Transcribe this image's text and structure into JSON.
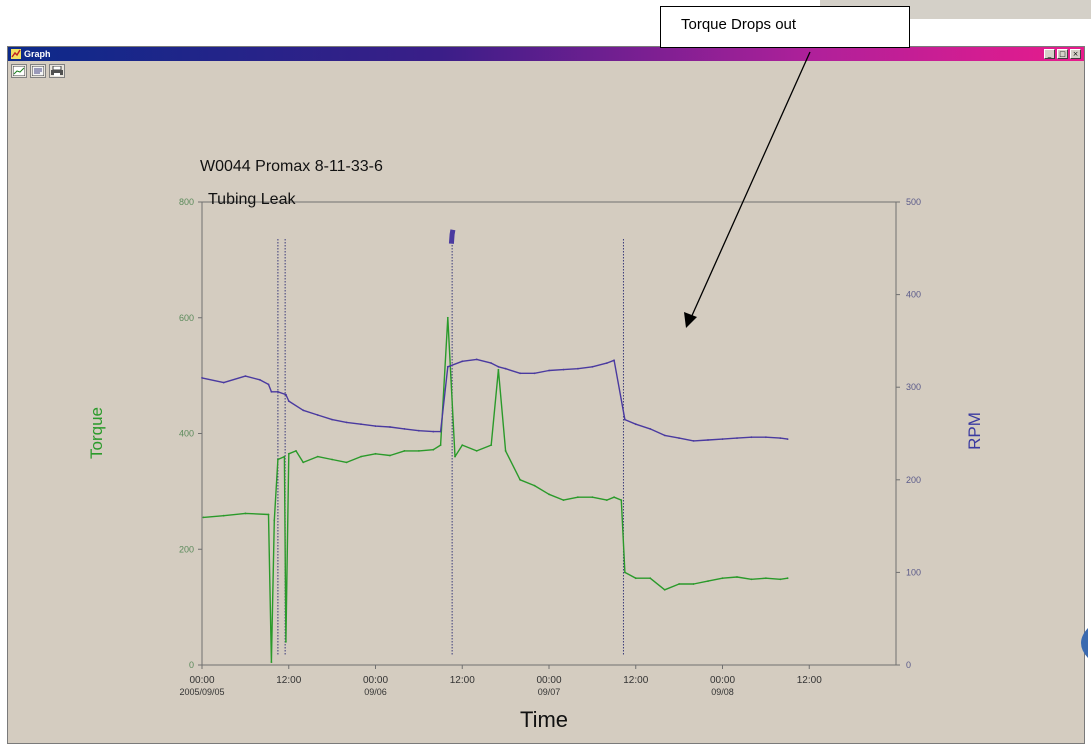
{
  "window": {
    "title": "Graph",
    "controls": [
      "_",
      "□",
      "×"
    ]
  },
  "toolbar": {
    "icons": [
      "chart-icon",
      "save-icon",
      "print-icon"
    ]
  },
  "callout": {
    "text": "Torque Drops out"
  },
  "colors": {
    "torque": "#2a9a2a",
    "rpm": "#4a3aa0",
    "background": "#d4ccc0"
  },
  "chart_data": {
    "type": "line",
    "title": "W0044 Promax 8-11-33-6",
    "subtitle": "Tubing Leak",
    "xlabel": "Time",
    "ylabel_left": "Torque",
    "ylabel_right": "RPM",
    "ylim_left": [
      0,
      800
    ],
    "ylim_right": [
      0,
      500
    ],
    "xlim_hours": [
      0,
      96
    ],
    "x_ticks": [
      {
        "h": 0,
        "time": "00:00",
        "date": "2005/09/05"
      },
      {
        "h": 12,
        "time": "12:00",
        "date": ""
      },
      {
        "h": 24,
        "time": "00:00",
        "date": "09/06"
      },
      {
        "h": 36,
        "time": "12:00",
        "date": ""
      },
      {
        "h": 48,
        "time": "00:00",
        "date": "09/07"
      },
      {
        "h": 60,
        "time": "12:00",
        "date": ""
      },
      {
        "h": 72,
        "time": "00:00",
        "date": "09/08"
      },
      {
        "h": 84,
        "time": "12:00",
        "date": ""
      }
    ],
    "y_ticks_left": [
      "0",
      "200",
      "400",
      "600",
      "800"
    ],
    "y_ticks_right": [
      "0",
      "100",
      "200",
      "300",
      "400",
      "500"
    ],
    "series": [
      {
        "name": "Torque",
        "axis": "left",
        "points": [
          [
            0.2,
            255
          ],
          [
            3,
            258
          ],
          [
            6,
            262
          ],
          [
            9.2,
            260
          ],
          [
            9.6,
            5
          ],
          [
            10,
            250
          ],
          [
            10.5,
            355
          ],
          [
            11.4,
            360
          ],
          [
            11.6,
            40
          ],
          [
            12,
            365
          ],
          [
            13,
            370
          ],
          [
            14,
            350
          ],
          [
            16,
            360
          ],
          [
            18,
            355
          ],
          [
            20,
            350
          ],
          [
            22,
            360
          ],
          [
            24,
            365
          ],
          [
            26,
            362
          ],
          [
            28,
            370
          ],
          [
            30,
            370
          ],
          [
            32,
            372
          ],
          [
            33,
            380
          ],
          [
            34,
            600
          ],
          [
            35,
            360
          ],
          [
            36,
            380
          ],
          [
            38,
            370
          ],
          [
            40,
            380
          ],
          [
            41,
            510
          ],
          [
            42,
            370
          ],
          [
            44,
            320
          ],
          [
            46,
            310
          ],
          [
            48,
            295
          ],
          [
            50,
            285
          ],
          [
            52,
            290
          ],
          [
            54,
            290
          ],
          [
            56,
            285
          ],
          [
            57,
            290
          ],
          [
            58,
            285
          ],
          [
            58.5,
            160
          ],
          [
            60,
            150
          ],
          [
            62,
            150
          ],
          [
            64,
            130
          ],
          [
            66,
            140
          ],
          [
            68,
            140
          ],
          [
            70,
            145
          ],
          [
            72,
            150
          ],
          [
            74,
            152
          ],
          [
            76,
            148
          ],
          [
            78,
            150
          ],
          [
            80,
            148
          ],
          [
            81,
            150
          ]
        ]
      },
      {
        "name": "RPM",
        "axis": "right",
        "points": [
          [
            0,
            310
          ],
          [
            3,
            305
          ],
          [
            6,
            312
          ],
          [
            8,
            308
          ],
          [
            9.2,
            303
          ],
          [
            9.6,
            295
          ],
          [
            10.5,
            295
          ],
          [
            11.6,
            292
          ],
          [
            12,
            285
          ],
          [
            14,
            275
          ],
          [
            16,
            270
          ],
          [
            18,
            265
          ],
          [
            20,
            262
          ],
          [
            22,
            260
          ],
          [
            24,
            258
          ],
          [
            26,
            257
          ],
          [
            28,
            255
          ],
          [
            30,
            253
          ],
          [
            32,
            252
          ],
          [
            33,
            252
          ],
          [
            34,
            322
          ],
          [
            36,
            328
          ],
          [
            38,
            330
          ],
          [
            40,
            326
          ],
          [
            41,
            322
          ],
          [
            42,
            320
          ],
          [
            44,
            315
          ],
          [
            46,
            315
          ],
          [
            48,
            318
          ],
          [
            50,
            319
          ],
          [
            52,
            320
          ],
          [
            54,
            322
          ],
          [
            56,
            326
          ],
          [
            57,
            329
          ],
          [
            58.5,
            265
          ],
          [
            60,
            260
          ],
          [
            62,
            255
          ],
          [
            64,
            248
          ],
          [
            66,
            245
          ],
          [
            68,
            242
          ],
          [
            70,
            243
          ],
          [
            72,
            244
          ],
          [
            74,
            245
          ],
          [
            76,
            246
          ],
          [
            78,
            246
          ],
          [
            80,
            245
          ],
          [
            81,
            244
          ]
        ]
      },
      {
        "name": "RPM spike",
        "axis": "right",
        "points": [
          [
            34.5,
            455
          ],
          [
            34.6,
            465
          ],
          [
            34.7,
            470
          ]
        ]
      }
    ],
    "drop_markers_hours": [
      10.5,
      11.5,
      34.6,
      58.3
    ]
  }
}
